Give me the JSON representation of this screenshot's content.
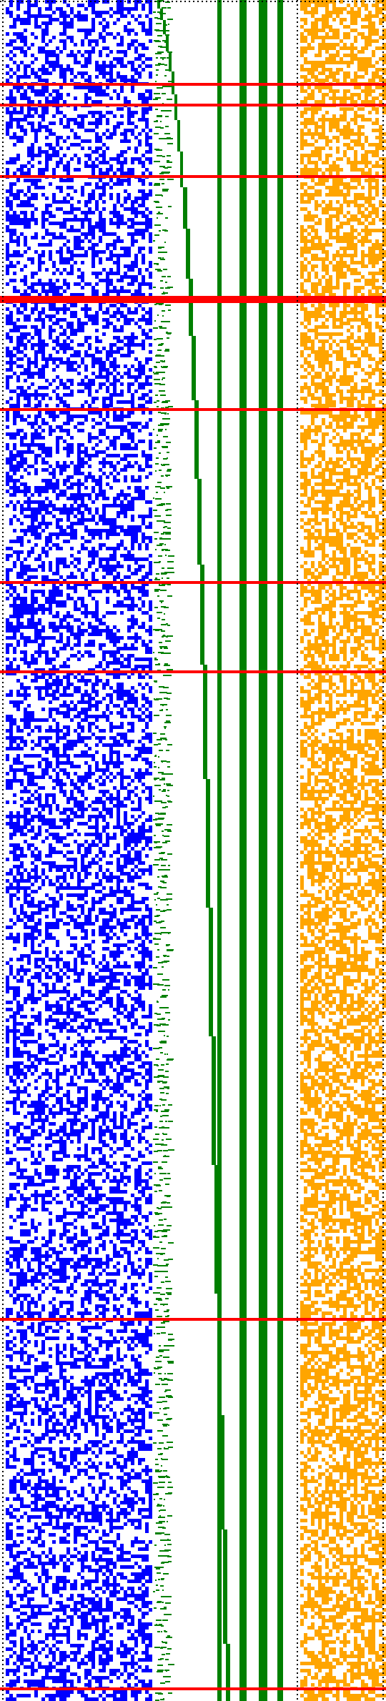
{
  "colors": {
    "background": "#ffffff",
    "left_noise": "#0000ff",
    "center_bars": "#008000",
    "right_noise": "#ffa500",
    "separators": "#ff0000",
    "dotted_guides": "#000000"
  },
  "regions": {
    "left_matrix": {
      "name": "blue-noise-matrix",
      "fill_ratio": 0.47,
      "seed": 17
    },
    "middle_pattern": {
      "name": "green-staircase-bars"
    },
    "right_matrix": {
      "name": "orange-noise-matrix",
      "fill_ratio": 0.58,
      "seed": 29
    }
  },
  "icons": {
    "boundary": "dotted-boundary-icon"
  }
}
